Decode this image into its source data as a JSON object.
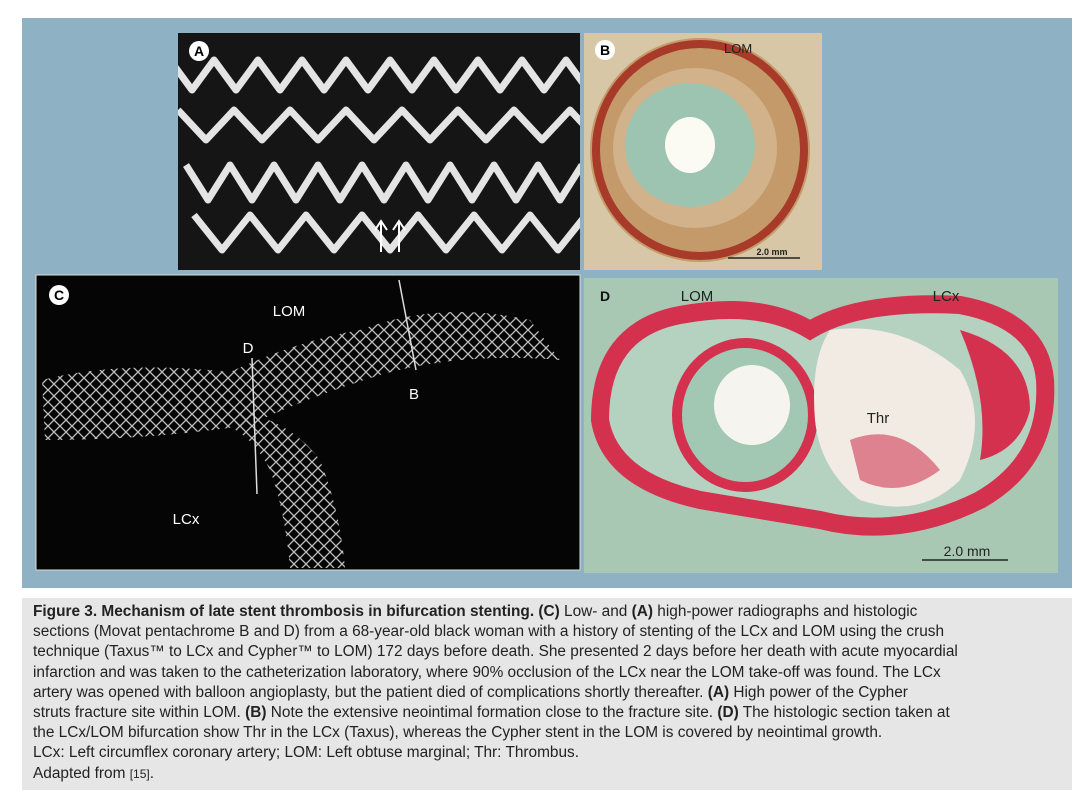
{
  "figure": {
    "panels": {
      "A": {
        "label": "A"
      },
      "B": {
        "label": "B",
        "vessel": "LOM",
        "scale": "2.0 mm"
      },
      "C": {
        "label": "C",
        "lom": "LOM",
        "d_marker": "D",
        "b_marker": "B",
        "lcx": "LCx"
      },
      "D": {
        "label": "D",
        "lom": "LOM",
        "lcx": "LCx",
        "thr": "Thr",
        "scale": "2.0 mm"
      }
    },
    "caption": {
      "lines": [
        [
          {
            "text": "Figure 3. Mechanism of late stent thrombosis in bifurcation stenting. (C)",
            "style": "bold"
          },
          {
            "text": " Low- and ",
            "style": "normal"
          },
          {
            "text": "(A)",
            "style": "bold"
          },
          {
            "text": " high-power radiographs and histologic",
            "style": "normal"
          }
        ],
        [
          {
            "text": "sections (Movat pentachrome B and D) from a 68-year-old black woman with a history of stenting of the LCx and LOM using the crush",
            "style": "normal"
          }
        ],
        [
          {
            "text": "technique (Taxus™ to LCx and Cypher™ to LOM) 172 days before death. She presented 2 days before her death with acute myocardial",
            "style": "normal"
          }
        ],
        [
          {
            "text": "infarction and was taken to the catheterization laboratory, where 90% occlusion of the LCx near the LOM take-off was found. The LCx",
            "style": "normal"
          }
        ],
        [
          {
            "text": "artery was opened with balloon angioplasty, but the patient died of complications shortly thereafter. ",
            "style": "normal"
          },
          {
            "text": "(A)",
            "style": "bold"
          },
          {
            "text": " High power of the Cypher",
            "style": "normal"
          }
        ],
        [
          {
            "text": "struts fracture site within LOM. ",
            "style": "normal"
          },
          {
            "text": "(B)",
            "style": "bold"
          },
          {
            "text": " Note the extensive neointimal formation close to the fracture site. ",
            "style": "normal"
          },
          {
            "text": "(D)",
            "style": "bold"
          },
          {
            "text": " The histologic section taken at",
            "style": "normal"
          }
        ],
        [
          {
            "text": "the LCx/LOM bifurcation show Thr in the LCx (Taxus), whereas the Cypher stent in the LOM is covered by neointimal growth.",
            "style": "normal"
          }
        ],
        [
          {
            "text": "LCx: Left circumflex coronary artery; LOM: Left obtuse marginal; Thr: Thrombus.",
            "style": "normal"
          }
        ],
        [
          {
            "text": "Adapted from ",
            "style": "normal"
          },
          {
            "text": "[15]",
            "style": "small"
          },
          {
            "text": ".",
            "style": "normal"
          }
        ]
      ]
    }
  }
}
